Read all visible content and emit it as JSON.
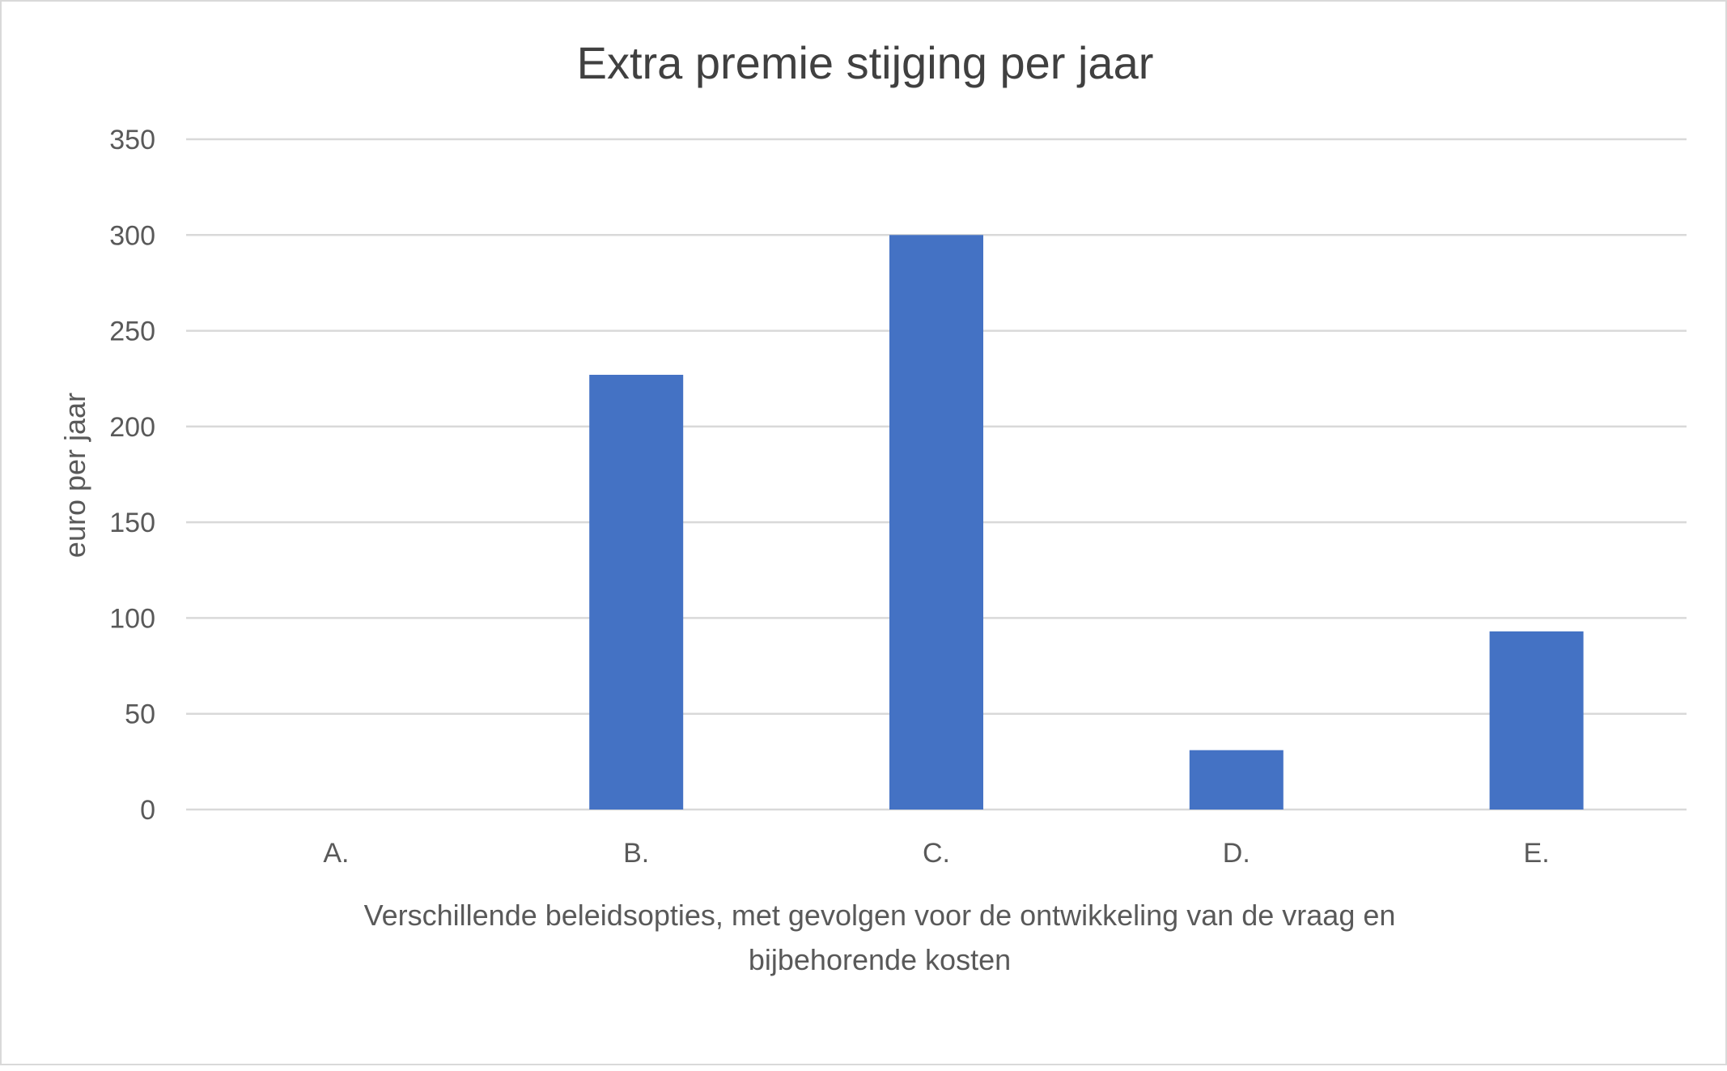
{
  "chart_data": {
    "type": "bar",
    "title": "Extra premie stijging per jaar",
    "xlabel_lines": [
      "Verschillende beleidsopties, met gevolgen voor de ontwikkeling van de vraag en",
      "bijbehorende kosten"
    ],
    "ylabel": "euro per jaar",
    "categories": [
      "A.",
      "B.",
      "C.",
      "D.",
      "E."
    ],
    "values": [
      0,
      227,
      300,
      31,
      93
    ],
    "ylim": [
      0,
      350
    ],
    "yticks": [
      0,
      50,
      100,
      150,
      200,
      250,
      300,
      350
    ],
    "grid": true,
    "legend": "none",
    "colors": {
      "bar": "#4472c4",
      "grid": "#d9d9d9",
      "text": "#595959",
      "title": "#404040"
    }
  }
}
